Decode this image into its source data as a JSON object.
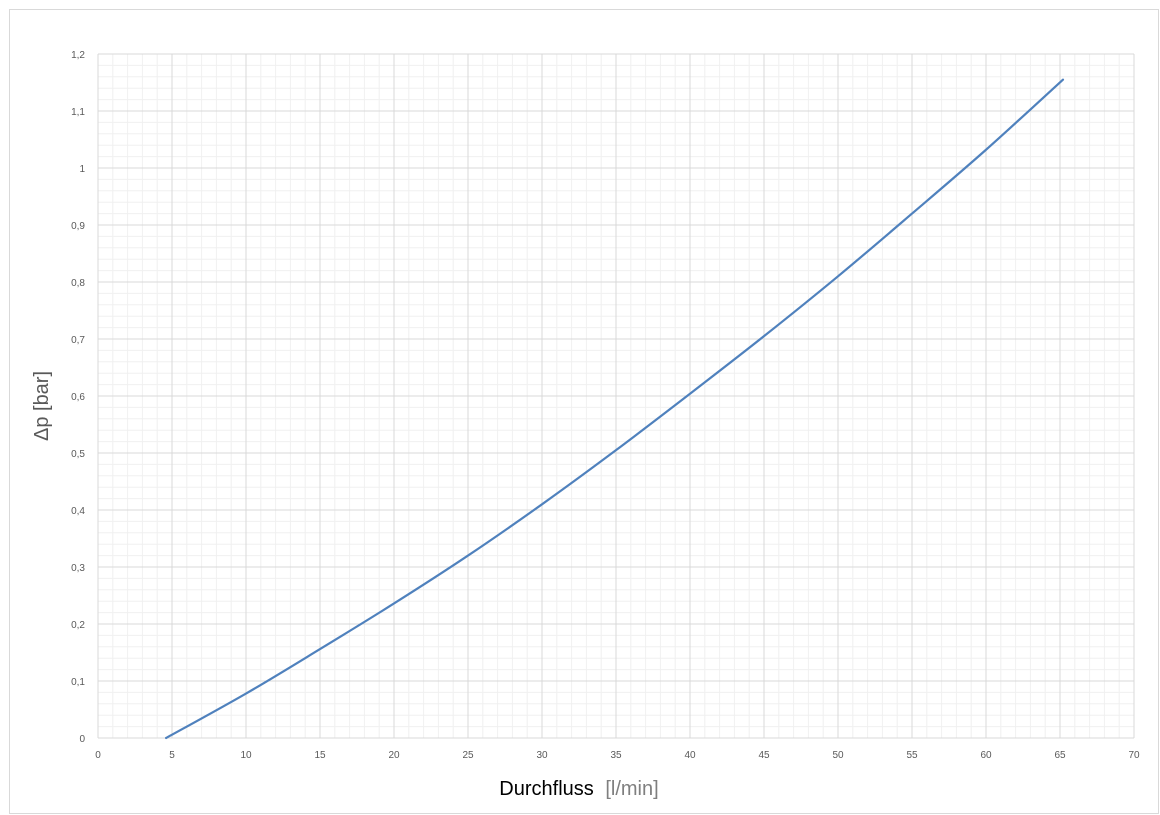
{
  "chart_data": {
    "type": "line",
    "title": "",
    "xlabel": "Durchfluss",
    "xlabel_unit": "[l/min]",
    "ylabel": "Δp [bar]",
    "xlim": [
      0,
      70
    ],
    "ylim": [
      0,
      1.2
    ],
    "x_ticks": [
      "0",
      "5",
      "10",
      "15",
      "20",
      "25",
      "30",
      "35",
      "40",
      "45",
      "50",
      "55",
      "60",
      "65",
      "70"
    ],
    "y_ticks": [
      "0",
      "0,1",
      "0,2",
      "0,3",
      "0,4",
      "0,5",
      "0,6",
      "0,7",
      "0,8",
      "0,9",
      "1",
      "1,1",
      "1,2"
    ],
    "grid": "major and minor",
    "legend": "none",
    "series": [
      {
        "color": "#4f81bd",
        "x": [
          4.6,
          10,
          15,
          20,
          25,
          30,
          35,
          40,
          45,
          50,
          55,
          60,
          65.2
        ],
        "y": [
          0.0,
          0.078,
          0.156,
          0.236,
          0.32,
          0.41,
          0.505,
          0.604,
          0.705,
          0.81,
          0.92,
          1.032,
          1.155
        ]
      }
    ],
    "colors": {
      "major_grid": "#d9d9d9",
      "minor_grid": "#f0f0f0",
      "tick_text": "#595959"
    }
  }
}
